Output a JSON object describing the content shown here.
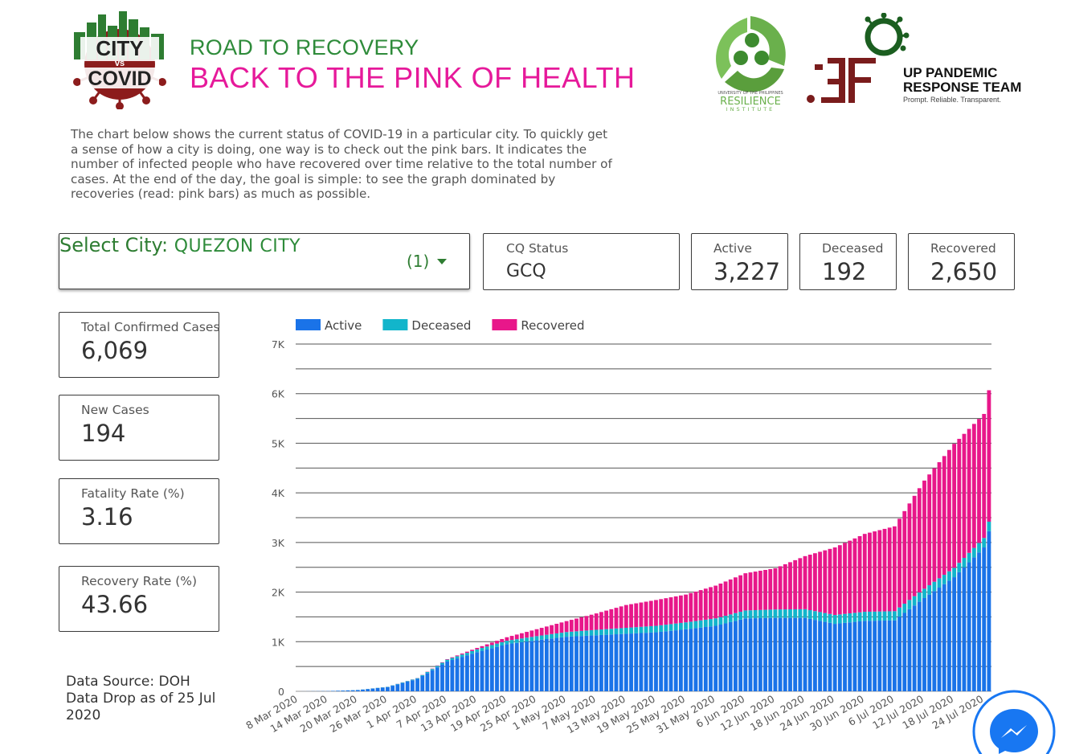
{
  "header": {
    "logo_text": [
      "CITY",
      "vs",
      "COVID"
    ],
    "subtitle": "ROAD TO RECOVERY",
    "title": "BACK TO THE PINK OF HEALTH",
    "resilience_logo_text": [
      "UNIVERSITY OF THE PHILIPPINES",
      "RESILIENCE",
      "INSTITUTE"
    ],
    "up_logo_name": [
      "UP PANDEMIC",
      "RESPONSE TEAM"
    ],
    "up_logo_tagline": "Prompt. Reliable. Transparent."
  },
  "intro": "The chart below shows the current status of COVID-19 in a particular city. To quickly get a sense of how a city is doing, one way is to check out the pink bars. It indicates the number of infected people who have recovered over time relative to the total number of cases. At the end of the day, the goal is simple: to see the graph dominated by recoveries (read: pink bars) as much as possible.",
  "city_select": {
    "label": "Select City:",
    "value": "QUEZON CITY",
    "count": "(1)"
  },
  "cq_status": {
    "label": "CQ Status",
    "value": "GCQ"
  },
  "scorecards": {
    "active": {
      "label": "Active",
      "value": "3,227"
    },
    "deceased": {
      "label": "Deceased",
      "value": "192"
    },
    "recovered": {
      "label": "Recovered",
      "value": "2,650"
    },
    "total": {
      "label": "Total Confirmed Cases",
      "value": "6,069"
    },
    "new_cases": {
      "label": "New Cases",
      "value": "194"
    },
    "fatality": {
      "label": "Fatality Rate (%)",
      "value": "3.16"
    },
    "recovery": {
      "label": "Recovery Rate (%)",
      "value": "43.66"
    }
  },
  "data_source": "Data Source: DOH Data Drop as of 25 Jul 2020",
  "colors": {
    "active": "#1a73e8",
    "deceased": "#12b5cb",
    "recovered": "#e8178a",
    "green": "#2e8b3a",
    "pink": "#e6199a",
    "maroon": "#7a1c1c",
    "messenger": "#1877f2"
  },
  "chart_data": {
    "type": "bar",
    "stacked": true,
    "ylim": [
      0,
      7000
    ],
    "yticks": [
      "0",
      "1K",
      "2K",
      "3K",
      "4K",
      "5K",
      "6K",
      "7K"
    ],
    "grid": true,
    "legend_position": "top-left",
    "x_start": "8 Mar 2020",
    "x_end": "25 Jul 2020",
    "xtick_labels": [
      "8 Mar 2020",
      "14 Mar 2020",
      "20 Mar 2020",
      "26 Mar 2020",
      "1 Apr 2020",
      "7 Apr 2020",
      "13 Apr 2020",
      "19 Apr 2020",
      "25 Apr 2020",
      "1 May 2020",
      "7 May 2020",
      "13 May 2020",
      "19 May 2020",
      "25 May 2020",
      "31 May 2020",
      "6 Jun 2020",
      "12 Jun 2020",
      "18 Jun 2020",
      "24 Jun 2020",
      "30 Jun 2020",
      "6 Jul 2020",
      "12 Jul 2020",
      "18 Jul 2020",
      "24 Jul 2020"
    ],
    "series_names": [
      "Active",
      "Deceased",
      "Recovered"
    ],
    "keypoints": {
      "dates": [
        "8 Mar 2020",
        "14 Mar 2020",
        "20 Mar 2020",
        "26 Mar 2020",
        "1 Apr 2020",
        "7 Apr 2020",
        "13 Apr 2020",
        "19 Apr 2020",
        "25 Apr 2020",
        "1 May 2020",
        "7 May 2020",
        "13 May 2020",
        "19 May 2020",
        "25 May 2020",
        "31 May 2020",
        "6 Jun 2020",
        "12 Jun 2020",
        "18 Jun 2020",
        "24 Jun 2020",
        "30 Jun 2020",
        "6 Jul 2020",
        "12 Jul 2020",
        "18 Jul 2020",
        "24 Jul 2020",
        "25 Jul 2020"
      ],
      "active": [
        0,
        5,
        25,
        85,
        250,
        600,
        790,
        950,
        1030,
        1100,
        1130,
        1160,
        1190,
        1250,
        1320,
        1470,
        1480,
        1480,
        1360,
        1420,
        1430,
        1880,
        2300,
        2900,
        3227
      ],
      "deceased": [
        0,
        0,
        2,
        6,
        15,
        38,
        55,
        70,
        82,
        95,
        110,
        120,
        130,
        140,
        150,
        160,
        170,
        175,
        180,
        183,
        185,
        188,
        189,
        191,
        192
      ],
      "recovered": [
        0,
        0,
        0,
        1,
        3,
        10,
        30,
        70,
        140,
        220,
        330,
        460,
        520,
        560,
        660,
        750,
        830,
        1070,
        1360,
        1570,
        1710,
        2180,
        2500,
        2500,
        2650
      ]
    }
  }
}
